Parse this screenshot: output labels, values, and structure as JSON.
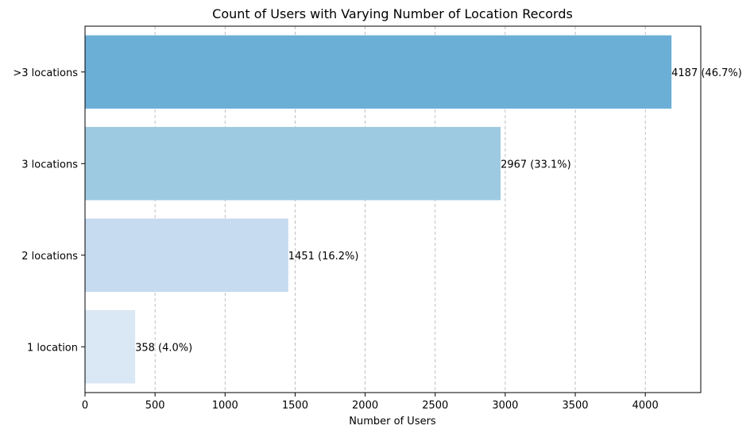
{
  "chart_data": {
    "type": "bar",
    "orientation": "horizontal",
    "title": "Count of Users with Varying Number of Location Records",
    "xlabel": "Number of Users",
    "ylabel": "",
    "categories": [
      "1 location",
      "2 locations",
      "3 locations",
      ">3 locations"
    ],
    "values": [
      358,
      1451,
      2967,
      4187
    ],
    "data_labels": [
      "358 (4.0%)",
      "1451 (16.2%)",
      "2967 (33.1%)",
      "4187 (46.7%)"
    ],
    "colors": [
      "#dae7f4",
      "#c6daf0",
      "#9ecae1",
      "#6baed6"
    ],
    "xlim": [
      0,
      4396
    ],
    "xticks": [
      0,
      500,
      1000,
      1500,
      2000,
      2500,
      3000,
      3500,
      4000
    ],
    "grid": "x-dashed",
    "legend": "none"
  }
}
